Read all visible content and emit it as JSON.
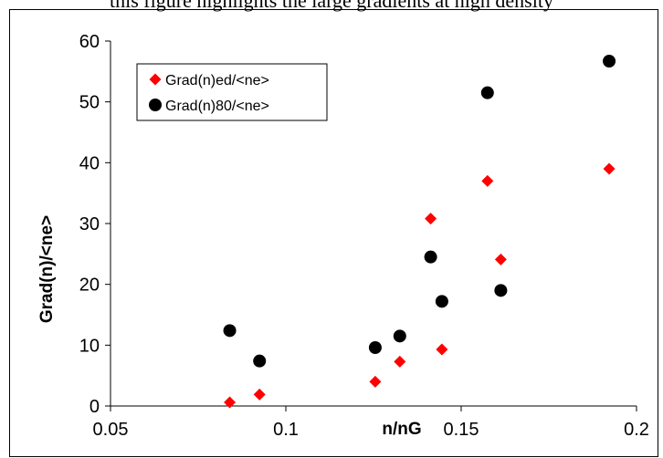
{
  "caption_fragment": "this figure highlights the large gradients at high density",
  "chart_data": {
    "type": "scatter",
    "title": "",
    "xlabel": "n/nG",
    "ylabel": "Grad(n)/<ne>",
    "xlim": [
      0.05,
      0.2
    ],
    "ylim": [
      0,
      60
    ],
    "x_ticks": [
      0.05,
      0.1,
      0.15,
      0.2
    ],
    "x_tick_labels": [
      "0.05",
      "0.1",
      "0.15",
      "0.2"
    ],
    "y_ticks": [
      0,
      10,
      20,
      30,
      40,
      50,
      60
    ],
    "y_tick_labels": [
      "0",
      "10",
      "20",
      "30",
      "40",
      "50",
      "60"
    ],
    "grid": false,
    "legend_position": "top-left",
    "series": [
      {
        "name": "Grad(n)ed/<ne>",
        "marker": "diamond",
        "color": "#ff0000",
        "points": [
          [
            0.084,
            0.6
          ],
          [
            0.0925,
            1.9
          ],
          [
            0.1255,
            4.0
          ],
          [
            0.1325,
            7.3
          ],
          [
            0.1413,
            30.8
          ],
          [
            0.1445,
            9.3
          ],
          [
            0.1575,
            37.0
          ],
          [
            0.1613,
            24.1
          ],
          [
            0.1922,
            39.0
          ]
        ]
      },
      {
        "name": "Grad(n)80/<ne>",
        "marker": "circle",
        "color": "#000000",
        "points": [
          [
            0.084,
            12.4
          ],
          [
            0.0925,
            7.4
          ],
          [
            0.1255,
            9.6
          ],
          [
            0.1325,
            11.5
          ],
          [
            0.1413,
            24.5
          ],
          [
            0.1445,
            17.2
          ],
          [
            0.1575,
            51.5
          ],
          [
            0.1613,
            19.0
          ],
          [
            0.1922,
            56.7
          ]
        ]
      }
    ]
  }
}
